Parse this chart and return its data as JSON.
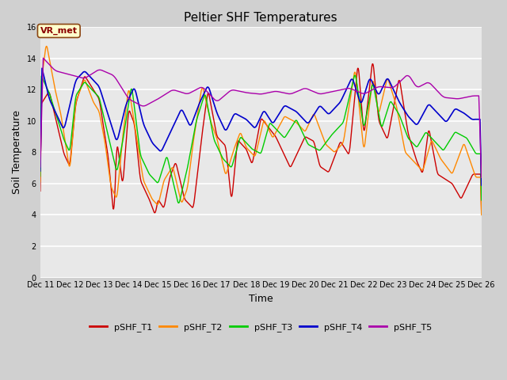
{
  "title": "Peltier SHF Temperatures",
  "xlabel": "Time",
  "ylabel": "Soil Temperature",
  "ylim": [
    0,
    16
  ],
  "yticks": [
    0,
    2,
    4,
    6,
    8,
    10,
    12,
    14,
    16
  ],
  "xtick_labels": [
    "Dec 11",
    "Dec 12",
    "Dec 13",
    "Dec 14",
    "Dec 15",
    "Dec 16",
    "Dec 17",
    "Dec 18",
    "Dec 19",
    "Dec 20",
    "Dec 21",
    "Dec 22",
    "Dec 23",
    "Dec 24",
    "Dec 25",
    "Dec 26"
  ],
  "colors": {
    "T1": "#cc0000",
    "T2": "#ff8800",
    "T3": "#00cc00",
    "T4": "#0000cc",
    "T5": "#aa00aa"
  },
  "legend_labels": [
    "pSHF_T1",
    "pSHF_T2",
    "pSHF_T3",
    "pSHF_T4",
    "pSHF_T5"
  ],
  "annotation_text": "VR_met",
  "fig_bg_color": "#d0d0d0",
  "plot_bg_color": "#e8e8e8",
  "title_fontsize": 11,
  "tick_fontsize": 7,
  "label_fontsize": 9
}
